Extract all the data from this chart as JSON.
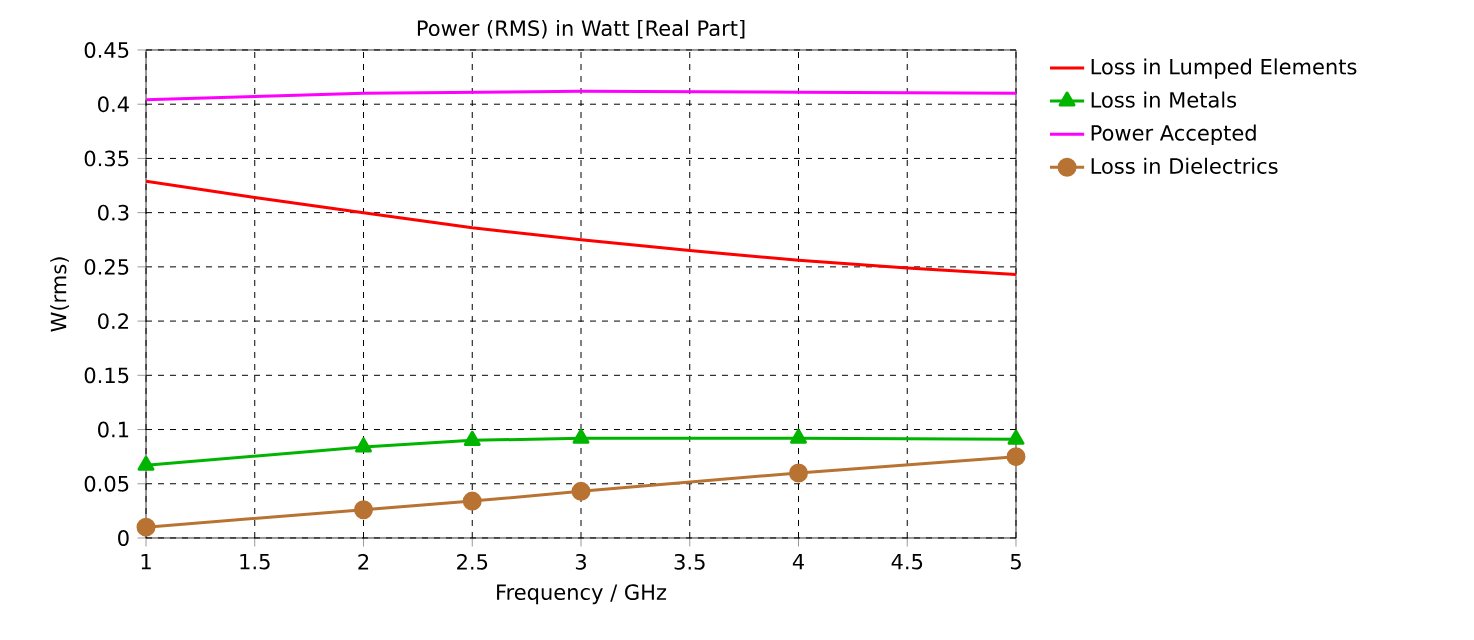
{
  "chart_data": {
    "type": "line",
    "title": "Power (RMS) in Watt [Real Part]",
    "xlabel": "Frequency / GHz",
    "ylabel": "W(rms)",
    "xlim": [
      1,
      5
    ],
    "ylim": [
      0,
      0.45
    ],
    "xticks": [
      1,
      1.5,
      2,
      2.5,
      3,
      3.5,
      4,
      4.5,
      5
    ],
    "yticks": [
      0,
      0.05,
      0.1,
      0.15,
      0.2,
      0.25,
      0.3,
      0.35,
      0.4,
      0.45
    ],
    "grid": true,
    "legend": "right",
    "line_style": "solid",
    "series": [
      {
        "name": "Loss in Lumped Elements",
        "color": "#ff0000",
        "marker": "none",
        "x": [
          1,
          1.5,
          2,
          2.5,
          3,
          3.5,
          4,
          4.5,
          5
        ],
        "values": [
          0.329,
          0.314,
          0.3,
          0.286,
          0.275,
          0.265,
          0.256,
          0.249,
          0.243
        ]
      },
      {
        "name": "Loss in Metals",
        "color": "#00b400",
        "marker": "triangle",
        "x": [
          1,
          2,
          2.5,
          3,
          4,
          5
        ],
        "values": [
          0.067,
          0.084,
          0.09,
          0.092,
          0.092,
          0.091
        ]
      },
      {
        "name": "Power Accepted",
        "color": "#ff00ff",
        "marker": "none",
        "x": [
          1,
          1.5,
          2,
          3,
          4,
          5
        ],
        "values": [
          0.404,
          0.407,
          0.41,
          0.412,
          0.411,
          0.41
        ]
      },
      {
        "name": "Loss in Dielectrics",
        "color": "#b87333",
        "marker": "circle",
        "x": [
          1,
          2,
          2.5,
          3,
          4,
          5
        ],
        "values": [
          0.01,
          0.026,
          0.034,
          0.043,
          0.06,
          0.075
        ]
      }
    ]
  }
}
